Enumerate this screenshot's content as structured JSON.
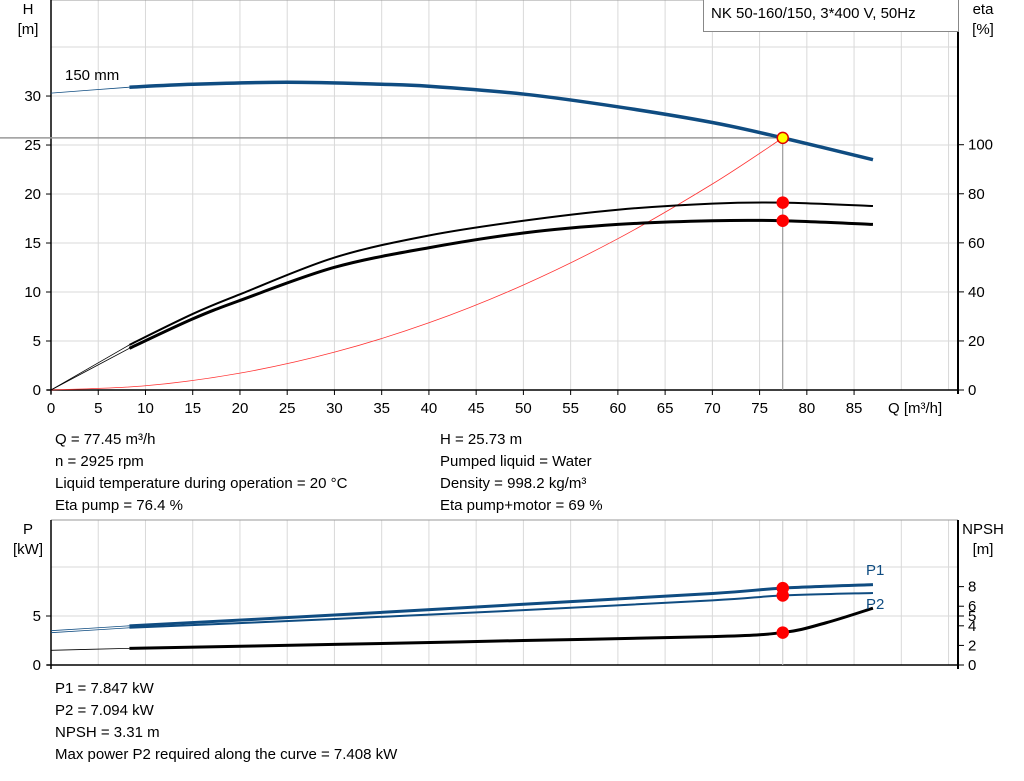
{
  "title": "NK 50-160/150, 3*400 V, 50Hz",
  "colors": {
    "head": "#0f4c81",
    "eta": "#000000",
    "system": "#ff3333",
    "power": "#0f4c81",
    "npsh": "#000000",
    "marker": "#ff0000",
    "duty_marker": "#ffff00",
    "grid": "#d9d9d9"
  },
  "info_top_left": [
    "Q = 77.45 m³/h",
    "n = 2925 rpm",
    "Liquid temperature during operation = 20 °C",
    "Eta pump = 76.4 %"
  ],
  "info_top_right": [
    "H = 25.73 m",
    "Pumped liquid = Water",
    "Density = 998.2 kg/m³",
    "Eta pump+motor = 69 %"
  ],
  "info_bottom": [
    "P1 = 7.847 kW",
    "P2 = 7.094 kW",
    "NPSH = 3.31 m",
    "Max power P2 required along the curve = 7.408 kW"
  ],
  "chart_data": [
    {
      "type": "line",
      "xlabel": "Q [m³/h]",
      "ylabel": "H\n[m]",
      "y2label": "eta\n[%]",
      "xticks": [
        0,
        5,
        10,
        15,
        20,
        25,
        30,
        35,
        40,
        45,
        50,
        55,
        60,
        65,
        70,
        75,
        80,
        85
      ],
      "yticks": [
        0,
        5,
        10,
        15,
        20,
        25,
        30
      ],
      "y2ticks": [
        0,
        20,
        40,
        60,
        80,
        100
      ],
      "xlim": [
        0,
        96
      ],
      "ylim": [
        0,
        39.8
      ],
      "y2lim": [
        0,
        159
      ],
      "grid": true,
      "annotation": "150 mm",
      "duty_point": {
        "Q": 77.45,
        "H": 25.73,
        "eta_pump": 76.4,
        "eta_pump_motor": 69
      },
      "series": [
        {
          "id": "head",
          "axis": "left",
          "x": [
            0,
            8.3,
            15,
            25,
            35,
            40,
            50,
            60,
            70,
            77.45,
            87
          ],
          "y": [
            30.3,
            30.9,
            31.2,
            31.4,
            31.2,
            31.0,
            30.2,
            28.9,
            27.3,
            25.73,
            23.5
          ],
          "extrapolated_below": 8.3
        },
        {
          "id": "eta_pump",
          "axis": "right",
          "x": [
            0,
            8.3,
            15,
            20,
            30,
            40,
            50,
            60,
            70,
            77.45,
            87
          ],
          "y": [
            0,
            18.4,
            31,
            39,
            54,
            63,
            69,
            73.5,
            76,
            76.4,
            75
          ],
          "extrapolated_below": 8.3
        },
        {
          "id": "eta_pump_motor",
          "axis": "right",
          "x": [
            0,
            8.3,
            15,
            20,
            30,
            40,
            50,
            60,
            70,
            77.45,
            87
          ],
          "y": [
            0,
            17,
            29,
            36.5,
            50,
            58,
            64,
            67.5,
            69,
            69,
            67.5
          ],
          "extrapolated_below": 8.3
        },
        {
          "id": "system",
          "axis": "left",
          "x": [
            0,
            10,
            20,
            30,
            40,
            50,
            60,
            70,
            77.45
          ],
          "y": [
            0,
            0.43,
            1.72,
            3.86,
            6.86,
            10.72,
            15.44,
            21.02,
            25.73
          ]
        }
      ]
    },
    {
      "type": "line",
      "ylabel": "P\n[kW]",
      "y2label": "NPSH\n[m]",
      "yticks": [
        0,
        5
      ],
      "y2ticks": [
        0,
        2,
        4,
        5,
        6,
        8
      ],
      "ylim": [
        0,
        14.8
      ],
      "y2lim": [
        0,
        14.8
      ],
      "grid": true,
      "series": [
        {
          "name": "P1",
          "axis": "left",
          "x": [
            0,
            8.3,
            30,
            50,
            70,
            77.45,
            87
          ],
          "y": [
            3.5,
            4.0,
            5.1,
            6.2,
            7.3,
            7.847,
            8.2
          ],
          "extrapolated_below": 8.3
        },
        {
          "name": "P2",
          "axis": "left",
          "x": [
            0,
            8.3,
            30,
            50,
            70,
            77.45,
            87
          ],
          "y": [
            3.3,
            3.8,
            4.7,
            5.6,
            6.6,
            7.094,
            7.35
          ],
          "extrapolated_below": 8.3
        },
        {
          "id": "npsh",
          "axis": "right",
          "x": [
            0,
            8.3,
            30,
            50,
            70,
            77.45,
            82,
            87
          ],
          "y": [
            1.5,
            1.7,
            2.1,
            2.5,
            2.9,
            3.31,
            4.3,
            5.8
          ],
          "extrapolated_below": 8.3
        }
      ]
    }
  ]
}
